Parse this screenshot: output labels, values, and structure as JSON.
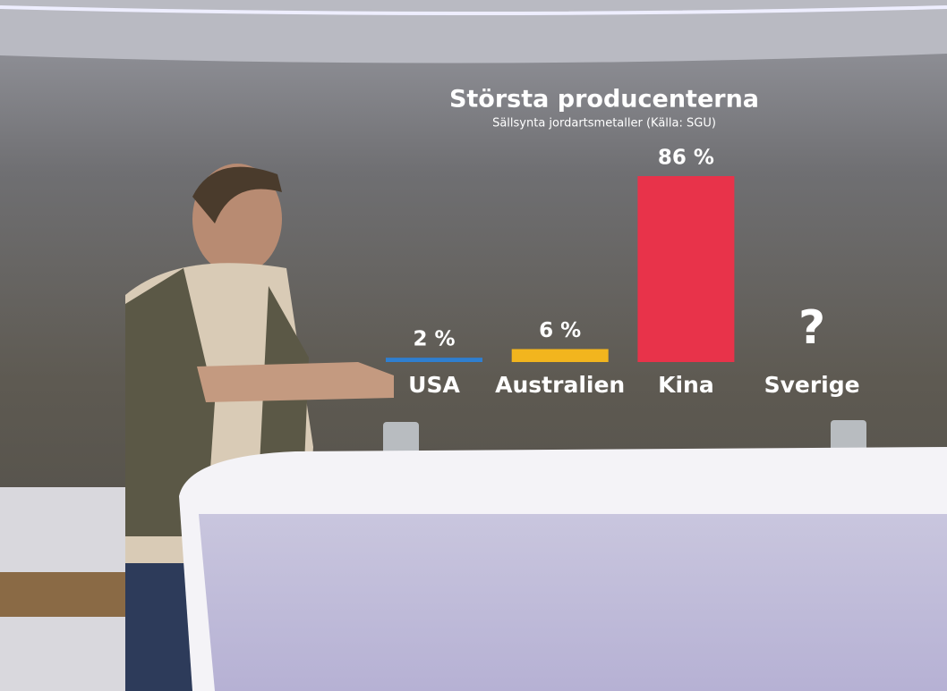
{
  "chart_data": {
    "type": "bar",
    "title": "Största producenterna",
    "subtitle": "Sällsynta jordartsmetaller (Källa: SGU)",
    "categories": [
      "USA",
      "Australien",
      "Kina",
      "Sverige"
    ],
    "values": [
      2,
      6,
      86,
      null
    ],
    "value_labels": [
      "2 %",
      "6 %",
      "86 %",
      "?"
    ],
    "colors": [
      "#2f7fd0",
      "#f2b51e",
      "#e8334a",
      null
    ]
  }
}
